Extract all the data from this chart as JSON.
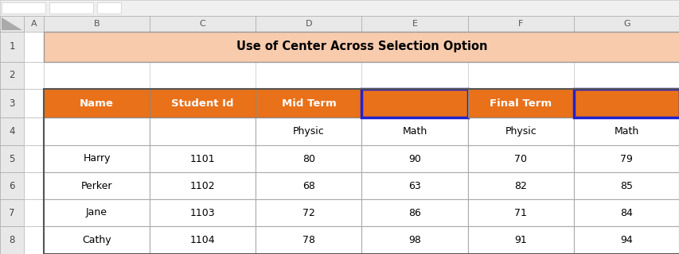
{
  "title": "Use of Center Across Selection Option",
  "title_bg": "#F8CBAD",
  "header_bg": "#E8711A",
  "header_text_color": "#FFFFFF",
  "orange_cell_bg": "#E8711A",
  "blue_border_color": "#2222CC",
  "cell_bg": "#FFFFFF",
  "bg_color": "#D8D8D8",
  "row_header_bg": "#E0E0E0",
  "col_header_bg": "#E0E0E0",
  "cell_text_color": "#000000",
  "col_headers": [
    "Name",
    "Student Id",
    "Mid Term",
    "",
    "Final Term",
    ""
  ],
  "sub_headers": [
    "",
    "",
    "Physic",
    "Math",
    "Physic",
    "Math"
  ],
  "rows": [
    [
      "Harry",
      "1101",
      "80",
      "90",
      "70",
      "79"
    ],
    [
      "Perker",
      "1102",
      "68",
      "63",
      "82",
      "85"
    ],
    [
      "Jane",
      "1103",
      "72",
      "86",
      "71",
      "84"
    ],
    [
      "Cathy",
      "1104",
      "78",
      "98",
      "91",
      "94"
    ]
  ],
  "excel_row_labels": [
    "1",
    "2",
    "3",
    "4",
    "5",
    "6",
    "7",
    "8"
  ],
  "excel_col_labels": [
    "A",
    "B",
    "C",
    "D",
    "E",
    "F",
    "G"
  ],
  "corner_triangle_color": "#AAAAAA"
}
